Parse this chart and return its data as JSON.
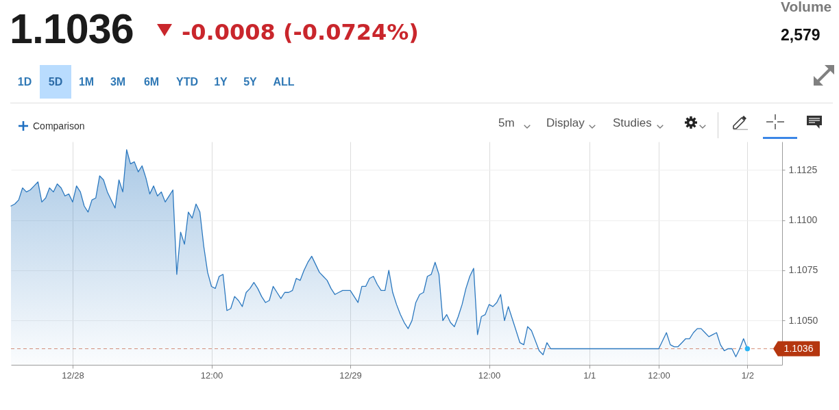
{
  "chart_data": {
    "type": "area",
    "title": "1.1036",
    "subtitle": "-0.0008 (-0.0724%)",
    "annotations": [
      "Volume",
      "2,579",
      "1D",
      "5D",
      "1M",
      "3M",
      "6M",
      "YTD",
      "1Y",
      "5Y",
      "ALL",
      "Comparison",
      "5m",
      "Display",
      "Studies"
    ],
    "categories": [
      null,
      null,
      null,
      null,
      null,
      null,
      null,
      null,
      null,
      null,
      null,
      null,
      null,
      null,
      null,
      null,
      "12/28",
      null,
      null,
      null,
      null,
      null,
      null,
      null,
      null,
      null,
      null,
      null,
      null,
      null,
      null,
      null,
      null,
      null,
      null,
      null,
      null,
      null,
      null,
      null,
      null,
      null,
      null,
      null,
      null,
      null,
      null,
      null,
      null,
      null,
      null,
      null,
      "12:00",
      null,
      null,
      null,
      null,
      null,
      null,
      null,
      null,
      null,
      null,
      null,
      null,
      null,
      null,
      null,
      null,
      null,
      null,
      null,
      null,
      null,
      null,
      null,
      null,
      null,
      null,
      null,
      null,
      null,
      null,
      null,
      null,
      null,
      null,
      null,
      "12/29",
      null,
      null,
      null,
      null,
      null,
      null,
      null,
      null,
      null,
      null,
      null,
      null,
      null,
      null,
      null,
      null,
      null,
      null,
      null,
      null,
      null,
      null,
      null,
      null,
      null,
      null,
      null,
      null,
      null,
      null,
      null,
      null,
      null,
      null,
      null,
      "12:00",
      null,
      null,
      null,
      null,
      null,
      null,
      null,
      null,
      null,
      null,
      null,
      null,
      null,
      null,
      null,
      null,
      null,
      null,
      null,
      null,
      null,
      null,
      null,
      null,
      null,
      "1/1",
      null,
      null,
      null,
      null,
      null,
      null,
      null,
      null,
      null,
      null,
      null,
      null,
      null,
      null,
      null,
      null,
      null,
      "12:00",
      null,
      null,
      null,
      null,
      null,
      null,
      null,
      null,
      null,
      null,
      null,
      null,
      null,
      null,
      null,
      null,
      null,
      null,
      null,
      null,
      null,
      null,
      "1/2",
      null,
      null,
      null,
      null,
      null,
      null,
      null,
      null,
      null
    ],
    "series": [
      {
        "color": "#2b78bf",
        "values": [
          1.1107,
          1.1108,
          1.111,
          1.1116,
          1.1114,
          1.1115,
          1.1117,
          1.1119,
          1.1109,
          1.1111,
          1.1116,
          1.1114,
          1.1118,
          1.1116,
          1.1112,
          1.1113,
          1.1109,
          1.1117,
          1.1114,
          1.1107,
          1.1104,
          1.111,
          1.1111,
          1.1122,
          1.112,
          1.1114,
          1.111,
          1.1106,
          1.112,
          1.1114,
          1.1135,
          1.1128,
          1.1129,
          1.1124,
          1.1127,
          1.1121,
          1.1113,
          1.1117,
          1.1112,
          1.1114,
          1.1109,
          1.1112,
          1.1115,
          1.1073,
          1.1094,
          1.1088,
          1.1104,
          1.1101,
          1.1108,
          1.1104,
          1.1087,
          1.1074,
          1.1067,
          1.1066,
          1.1072,
          1.1073,
          1.1055,
          1.1056,
          1.1062,
          1.106,
          1.1057,
          1.1064,
          1.1066,
          1.1069,
          1.1066,
          1.1062,
          1.1059,
          1.106,
          1.1067,
          1.1064,
          1.1061,
          1.1064,
          1.1064,
          1.1065,
          1.1071,
          1.107,
          1.1075,
          1.1079,
          1.1082,
          1.1078,
          1.1074,
          1.1072,
          1.107,
          1.1066,
          1.1063,
          1.1064,
          1.1065,
          1.1065,
          1.1065,
          1.1062,
          1.1059,
          1.1067,
          1.1067,
          1.1071,
          1.1072,
          1.1068,
          1.1065,
          1.1065,
          1.1075,
          1.1064,
          1.1058,
          1.1053,
          1.1049,
          1.1046,
          1.105,
          1.1059,
          1.1063,
          1.1064,
          1.1072,
          1.1073,
          1.1079,
          1.1073,
          1.105,
          1.1053,
          1.1049,
          1.1047,
          1.1052,
          1.1058,
          1.1066,
          1.1072,
          1.1076,
          1.1043,
          1.1052,
          1.1053,
          1.1058,
          1.1057,
          1.1059,
          1.1063,
          1.105,
          1.1057,
          1.1051,
          1.1045,
          1.1039,
          1.1038,
          1.1047,
          1.1045,
          1.104,
          1.1035,
          1.1033,
          1.1039,
          1.1036,
          1.1036,
          1.1036,
          1.1036,
          1.1036,
          1.1036,
          1.1036,
          1.1036,
          1.1036,
          1.1036,
          1.1036,
          1.1036,
          1.1036,
          1.1036,
          1.1036,
          1.1036,
          1.1036,
          1.1036,
          1.1036,
          1.1036,
          1.1036,
          1.1036,
          1.1036,
          1.1036,
          1.1036,
          1.1036,
          1.1036,
          1.1036,
          1.1036,
          1.104,
          1.1044,
          1.1038,
          1.1037,
          1.1037,
          1.1039,
          1.1041,
          1.1041,
          1.1044,
          1.1046,
          1.1046,
          1.1044,
          1.1042,
          1.1043,
          1.1044,
          1.1038,
          1.1035,
          1.1036,
          1.1036,
          1.1032,
          1.1036,
          1.1041,
          1.1036,
          null,
          null,
          null,
          null,
          null,
          null,
          null,
          null,
          null
        ]
      },
      {
        "type": "scatter",
        "color": "#2bb4f4",
        "values": [
          null,
          null,
          null,
          null,
          null,
          null,
          null,
          null,
          null,
          null,
          null,
          null,
          null,
          null,
          null,
          null,
          null,
          null,
          null,
          null,
          null,
          null,
          null,
          null,
          null,
          null,
          null,
          null,
          null,
          null,
          null,
          null,
          null,
          null,
          null,
          null,
          null,
          null,
          null,
          null,
          null,
          null,
          null,
          null,
          null,
          null,
          null,
          null,
          null,
          null,
          null,
          null,
          null,
          null,
          null,
          null,
          null,
          null,
          null,
          null,
          null,
          null,
          null,
          null,
          null,
          null,
          null,
          null,
          null,
          null,
          null,
          null,
          null,
          null,
          null,
          null,
          null,
          null,
          null,
          null,
          null,
          null,
          null,
          null,
          null,
          null,
          null,
          null,
          null,
          null,
          null,
          null,
          null,
          null,
          null,
          null,
          null,
          null,
          null,
          null,
          null,
          null,
          null,
          null,
          null,
          null,
          null,
          null,
          null,
          null,
          null,
          null,
          null,
          null,
          null,
          null,
          null,
          null,
          null,
          null,
          null,
          null,
          null,
          null,
          null,
          null,
          null,
          null,
          null,
          null,
          null,
          null,
          null,
          null,
          null,
          null,
          null,
          null,
          null,
          null,
          null,
          null,
          null,
          null,
          null,
          null,
          null,
          null,
          null,
          null,
          null,
          null,
          null,
          null,
          null,
          null,
          null,
          null,
          null,
          null,
          null,
          null,
          null,
          null,
          null,
          null,
          null,
          null,
          null,
          null,
          null,
          null,
          null,
          null,
          null,
          null,
          null,
          null,
          null,
          null,
          null,
          null,
          null,
          null,
          null,
          null,
          null,
          null,
          null,
          null,
          null,
          1.1036,
          null,
          null,
          null,
          null,
          null,
          null,
          null,
          null,
          null
        ]
      }
    ],
    "ylim": [
      1.1028,
      1.1139
    ],
    "yticks": [
      {
        "value": 1.105,
        "label": "1.1050"
      },
      1.1075,
      {
        "value": 1.11,
        "label": "1.1100"
      },
      1.1125
    ],
    "grid": true,
    "ref_lines": [
      {
        "axis": "y",
        "value": 1.1036,
        "label": "1.1036",
        "color": "#b5360f",
        "line_style": "dashed"
      }
    ]
  }
}
